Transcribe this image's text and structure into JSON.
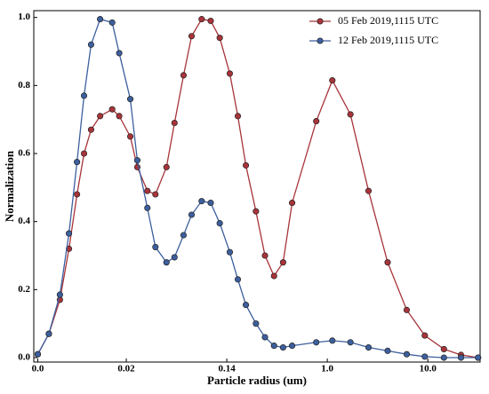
{
  "chart_data": {
    "type": "line",
    "xlabel": "Particle radius (um)",
    "ylabel": "Normalization",
    "x": [
      0.12,
      0.23,
      0.34,
      0.43,
      0.51,
      0.58,
      0.65,
      0.74,
      0.86,
      0.93,
      1.04,
      1.11,
      1.21,
      1.29,
      1.4,
      1.48,
      1.57,
      1.65,
      1.75,
      1.84,
      1.93,
      2.03,
      2.11,
      2.19,
      2.29,
      2.38,
      2.47,
      2.56,
      2.65,
      2.89,
      3.05,
      3.23,
      3.41,
      3.6,
      3.79,
      3.97,
      4.16,
      4.33,
      4.5
    ],
    "series": [
      {
        "name": "05 Feb 2019,1115 UTC",
        "color": "#a8343a",
        "values": [
          0.01,
          0.07,
          0.17,
          0.32,
          0.48,
          0.6,
          0.67,
          0.71,
          0.73,
          0.71,
          0.65,
          0.56,
          0.49,
          0.48,
          0.56,
          0.69,
          0.83,
          0.945,
          0.995,
          0.99,
          0.94,
          0.835,
          0.71,
          0.565,
          0.43,
          0.3,
          0.24,
          0.28,
          0.455,
          0.695,
          0.815,
          0.715,
          0.49,
          0.28,
          0.14,
          0.065,
          0.025,
          0.008,
          0.0
        ]
      },
      {
        "name": "12 Feb 2019,1115 UTC",
        "color": "#3d5f9e",
        "values": [
          0.01,
          0.07,
          0.185,
          0.365,
          0.575,
          0.77,
          0.92,
          0.995,
          0.985,
          0.895,
          0.76,
          0.58,
          0.44,
          0.325,
          0.28,
          0.295,
          0.36,
          0.42,
          0.46,
          0.455,
          0.395,
          0.31,
          0.23,
          0.155,
          0.1,
          0.06,
          0.035,
          0.03,
          0.035,
          0.045,
          0.05,
          0.045,
          0.03,
          0.02,
          0.01,
          0.003,
          0.0,
          0.0,
          0.0
        ]
      }
    ],
    "xlim": [
      0.08,
      4.52
    ],
    "ylim": [
      -0.013,
      1.02
    ],
    "xticks": [
      {
        "value": 0.12,
        "label": "0.0"
      },
      {
        "value": 1,
        "label": "0.02"
      },
      {
        "value": 2,
        "label": "0.14"
      },
      {
        "value": 3,
        "label": "1.0"
      },
      {
        "value": 4,
        "label": "10.0"
      }
    ],
    "yticks": [
      {
        "value": 0,
        "label": "0.0"
      },
      0.2,
      0.4,
      0.6,
      0.8,
      {
        "value": 1,
        "label": "1.0"
      }
    ],
    "legend": "top-right"
  }
}
